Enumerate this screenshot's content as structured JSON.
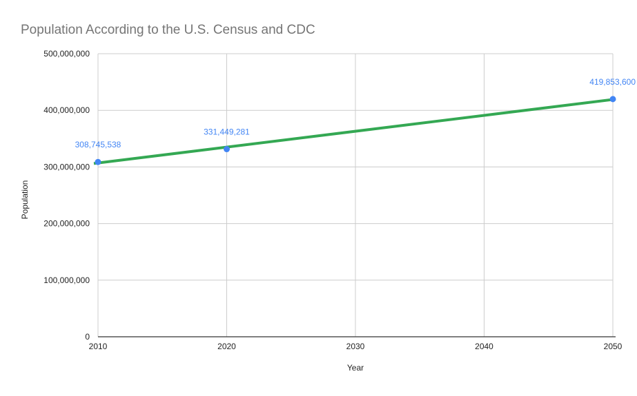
{
  "chart_data": {
    "type": "scatter",
    "title": "Population According to the U.S. Census and CDC",
    "xlabel": "Year",
    "ylabel": "Population",
    "xlim": [
      2010,
      2050
    ],
    "ylim": [
      0,
      500000000
    ],
    "x_ticks": [
      2010,
      2020,
      2030,
      2040,
      2050
    ],
    "x_tick_labels": [
      "2010",
      "2020",
      "2030",
      "2040",
      "2050"
    ],
    "y_ticks": [
      0,
      100000000,
      200000000,
      300000000,
      400000000,
      500000000
    ],
    "y_tick_labels": [
      "0",
      "100,000,000",
      "200,000,000",
      "300,000,000",
      "400,000,000",
      "500,000,000"
    ],
    "grid": true,
    "legend": "none",
    "series": [
      {
        "x": [
          2010,
          2020,
          2050
        ],
        "y": [
          308745538,
          331449281,
          419853600
        ],
        "data_labels": [
          "308,745,538",
          "331,449,281",
          "419,853,600"
        ],
        "color": "#4285f4"
      }
    ],
    "trendline": {
      "kind": "linear",
      "x": [
        2010,
        2050
      ],
      "y": [
        306100000,
        419700000
      ],
      "color": "#34a853"
    },
    "colors": {
      "title": "#757575",
      "data_label": "#4285f4",
      "axis_text": "#222222",
      "grid": "#cccccc",
      "baseline": "#333333"
    }
  }
}
